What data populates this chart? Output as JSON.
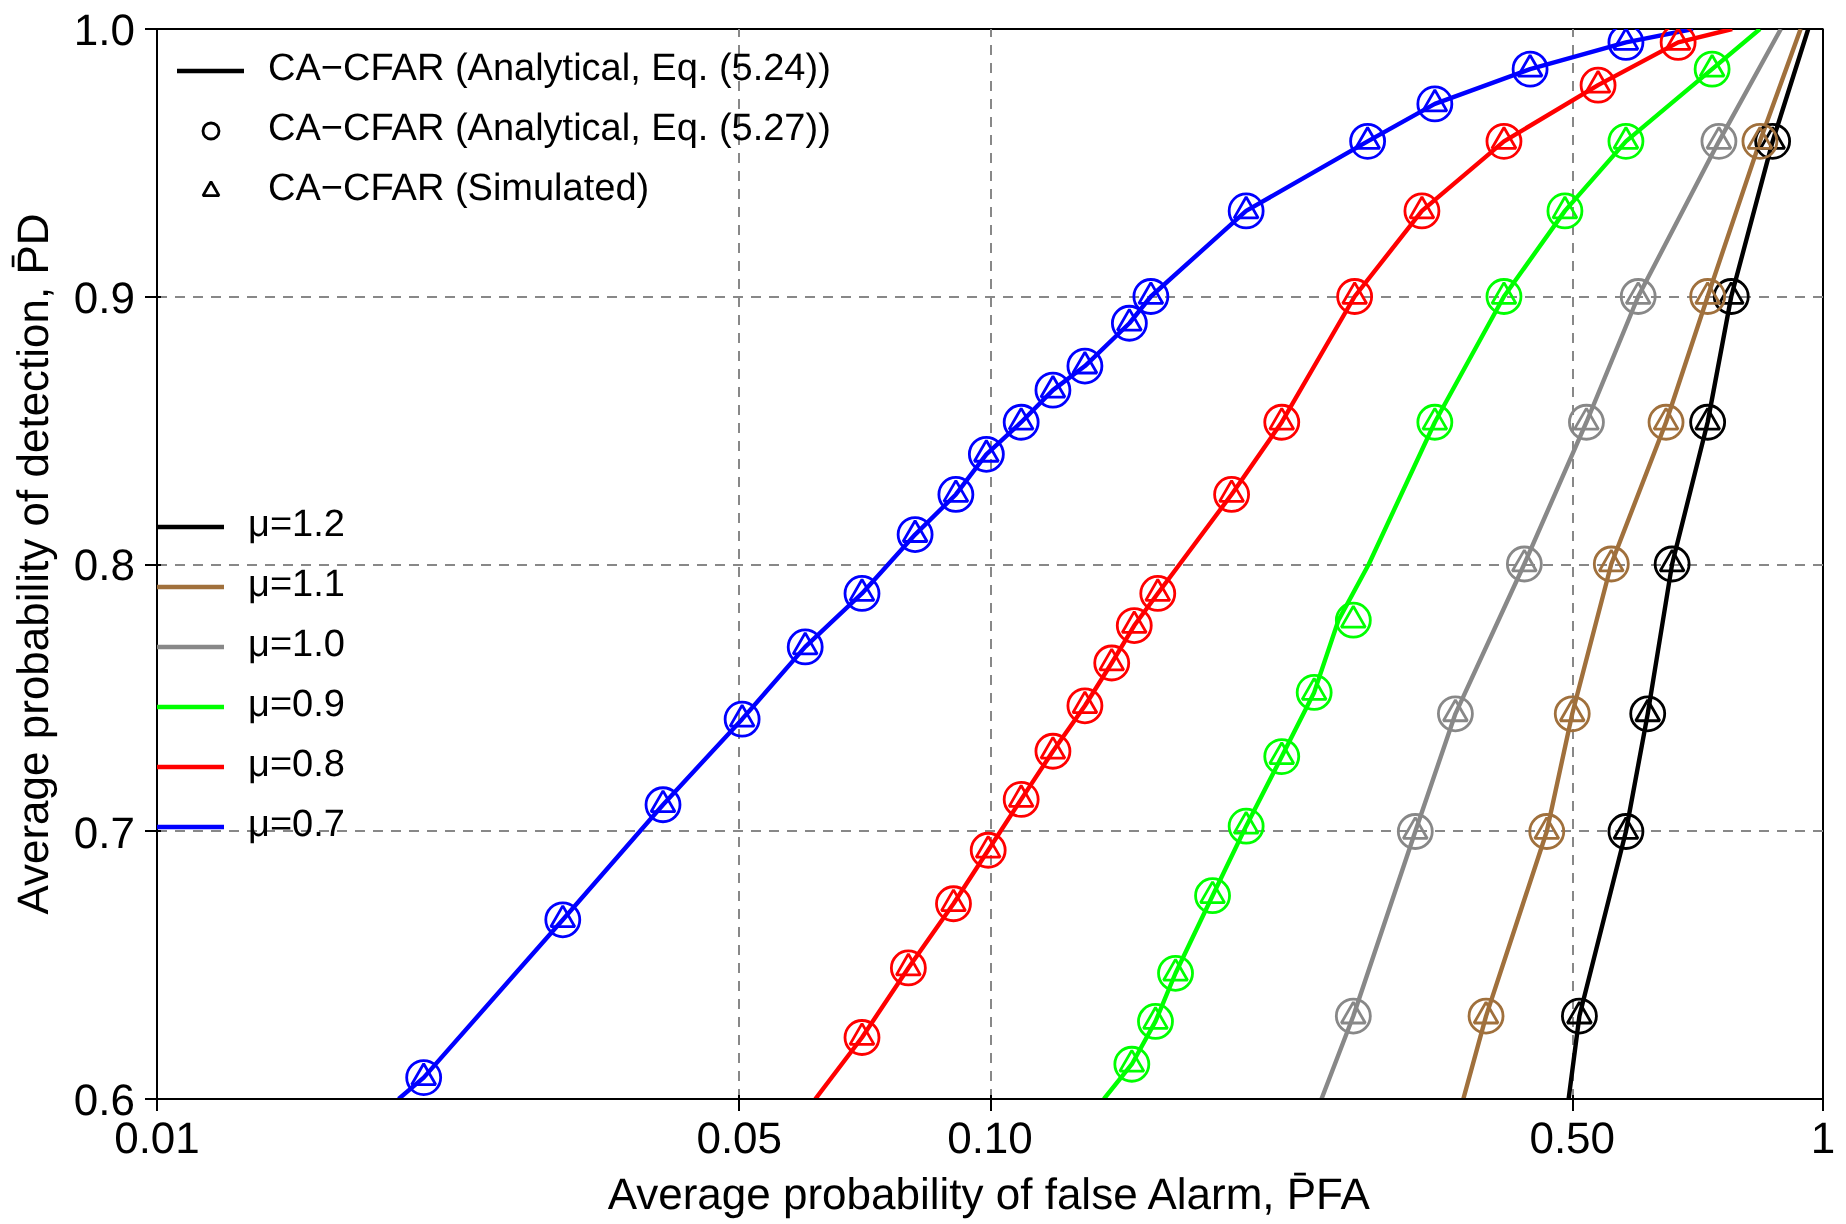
{
  "chart_data": {
    "type": "line",
    "xlabel": "Average probability of false Alarm, P̄FA",
    "ylabel": "Average probability of detection, P̄D",
    "annotations": [
      "CA−CFAR (Analytical, Eq. (5.24))"
    ],
    "log": "x",
    "xlim": [
      0.01,
      1
    ],
    "ylim": [
      0.6,
      1.0
    ],
    "xticks": [
      0.01,
      0.05,
      {
        "value": 0.1,
        "label": "0.10"
      },
      {
        "value": 0.5,
        "label": "0.50"
      },
      1
    ],
    "yticks": [
      0.6,
      0.7,
      0.8,
      0.9,
      {
        "value": 1,
        "label": "1.0"
      }
    ],
    "grid": true,
    "legend": "top left",
    "line_style": "solid",
    "series": [
      {
        "name": "μ=1.2",
        "color": "#000000",
        "x": [
          0.495,
          0.51,
          0.58,
          0.616,
          0.659,
          0.727,
          0.776,
          0.87,
          0.96
        ],
        "values": [
          0.6,
          0.631,
          0.7,
          0.744,
          0.8,
          0.853,
          0.9,
          0.958,
          1.0
        ]
      },
      {
        "name": "μ=1.1",
        "color": "#a0703c",
        "x": [
          0.37,
          0.394,
          0.466,
          0.5,
          0.557,
          0.648,
          0.727,
          0.84,
          0.94
        ],
        "values": [
          0.6,
          0.631,
          0.7,
          0.744,
          0.8,
          0.853,
          0.9,
          0.958,
          1.0
        ]
      },
      {
        "name": "μ=1.0",
        "color": "#888888",
        "x": [
          0.25,
          0.273,
          0.324,
          0.362,
          0.438,
          0.52,
          0.6,
          0.75,
          0.89
        ],
        "values": [
          0.6,
          0.631,
          0.7,
          0.744,
          0.8,
          0.853,
          0.9,
          0.958,
          1.0
        ]
      },
      {
        "name": "μ=0.9",
        "color": "#00ff00",
        "x": [
          0.137,
          0.148,
          0.158,
          0.167,
          0.185,
          0.203,
          0.224,
          0.245,
          0.262,
          0.285,
          0.342,
          0.414,
          0.49,
          0.58,
          0.736,
          0.84
        ],
        "values": [
          0.6,
          0.613,
          0.629,
          0.647,
          0.676,
          0.702,
          0.728,
          0.752,
          0.779,
          0.8,
          0.853,
          0.9,
          0.932,
          0.958,
          0.985,
          1.0
        ]
      },
      {
        "name": "μ=0.8",
        "color": "#ff0000",
        "x": [
          0.0617,
          0.0702,
          0.0798,
          0.0904,
          0.0995,
          0.109,
          0.119,
          0.13,
          0.14,
          0.149,
          0.159,
          0.169,
          0.195,
          0.224,
          0.274,
          0.33,
          0.414,
          0.537,
          0.67,
          0.778
        ],
        "values": [
          0.6,
          0.623,
          0.649,
          0.673,
          0.693,
          0.712,
          0.73,
          0.747,
          0.763,
          0.777,
          0.789,
          0.8,
          0.826,
          0.853,
          0.9,
          0.932,
          0.958,
          0.979,
          0.995,
          1.0
        ]
      },
      {
        "name": "μ=0.7",
        "color": "#0000ff",
        "x": [
          0.0195,
          0.0209,
          0.0307,
          0.0405,
          0.0504,
          0.06,
          0.0702,
          0.0813,
          0.091,
          0.099,
          0.109,
          0.119,
          0.13,
          0.147,
          0.156,
          0.203,
          0.284,
          0.342,
          0.445,
          0.58,
          0.698
        ],
        "values": [
          0.6,
          0.608,
          0.667,
          0.71,
          0.742,
          0.769,
          0.789,
          0.811,
          0.826,
          0.841,
          0.853,
          0.865,
          0.874,
          0.89,
          0.9,
          0.932,
          0.958,
          0.972,
          0.985,
          0.995,
          1.0
        ]
      },
      {
        "name": "CA−CFAR (Analytical, Eq. (5.27))",
        "type": "scatter",
        "marker": "circle",
        "color": "#000000",
        "x": [
          0.51,
          0.58,
          0.616,
          0.659,
          0.727,
          0.776,
          0.87
        ],
        "values": [
          0.631,
          0.7,
          0.744,
          0.8,
          0.853,
          0.9,
          0.958
        ]
      },
      {
        "name": "CA−CFAR (Simulated)",
        "type": "scatter",
        "marker": "triangle",
        "color": "#000000",
        "x": [
          0.51,
          0.58,
          0.616,
          0.659,
          0.727,
          0.776,
          0.87
        ],
        "values": [
          0.631,
          0.7,
          0.744,
          0.8,
          0.853,
          0.9,
          0.958
        ]
      },
      {
        "type": "scatter",
        "marker": "circle",
        "color": "#a0703c",
        "x": [
          0.394,
          0.466,
          0.5,
          0.557,
          0.648,
          0.727,
          0.84
        ],
        "values": [
          0.631,
          0.7,
          0.744,
          0.8,
          0.853,
          0.9,
          0.958
        ]
      },
      {
        "type": "scatter",
        "marker": "triangle",
        "color": "#a0703c",
        "x": [
          0.394,
          0.466,
          0.5,
          0.557,
          0.648,
          0.727,
          0.84
        ],
        "values": [
          0.631,
          0.7,
          0.744,
          0.8,
          0.853,
          0.9,
          0.958
        ]
      },
      {
        "type": "scatter",
        "marker": "circle",
        "color": "#888888",
        "x": [
          0.273,
          0.324,
          0.362,
          0.438,
          0.52,
          0.6,
          0.75
        ],
        "values": [
          0.631,
          0.7,
          0.744,
          0.8,
          0.853,
          0.9,
          0.958
        ]
      },
      {
        "type": "scatter",
        "marker": "triangle",
        "color": "#888888",
        "x": [
          0.273,
          0.324,
          0.362,
          0.438,
          0.52,
          0.6,
          0.75
        ],
        "values": [
          0.631,
          0.7,
          0.744,
          0.8,
          0.853,
          0.9,
          0.958
        ]
      },
      {
        "type": "scatter",
        "marker": "circle",
        "color": "#00ff00",
        "x": [
          0.148,
          0.158,
          0.167,
          0.185,
          0.203,
          0.224,
          0.245,
          0.273,
          0.342,
          0.414,
          0.49,
          0.58,
          0.736
        ],
        "values": [
          0.613,
          0.629,
          0.647,
          0.676,
          0.702,
          0.728,
          0.752,
          0.779,
          0.853,
          0.9,
          0.932,
          0.958,
          0.985
        ]
      },
      {
        "type": "scatter",
        "marker": "triangle",
        "color": "#00ff00",
        "x": [
          0.148,
          0.158,
          0.167,
          0.185,
          0.203,
          0.224,
          0.245,
          0.273,
          0.342,
          0.414,
          0.49,
          0.58,
          0.736
        ],
        "values": [
          0.613,
          0.629,
          0.647,
          0.676,
          0.702,
          0.728,
          0.752,
          0.779,
          0.853,
          0.9,
          0.932,
          0.958,
          0.985
        ]
      },
      {
        "type": "scatter",
        "marker": "circle",
        "color": "#ff0000",
        "x": [
          0.0702,
          0.0798,
          0.0904,
          0.0995,
          0.109,
          0.119,
          0.13,
          0.14,
          0.149,
          0.159,
          0.195,
          0.224,
          0.274,
          0.33,
          0.414,
          0.537,
          0.67
        ],
        "values": [
          0.623,
          0.649,
          0.673,
          0.693,
          0.712,
          0.73,
          0.747,
          0.763,
          0.777,
          0.789,
          0.826,
          0.853,
          0.9,
          0.932,
          0.958,
          0.979,
          0.995
        ]
      },
      {
        "type": "scatter",
        "marker": "triangle",
        "color": "#ff0000",
        "x": [
          0.0702,
          0.0798,
          0.0904,
          0.0995,
          0.109,
          0.119,
          0.13,
          0.14,
          0.149,
          0.159,
          0.195,
          0.224,
          0.274,
          0.33,
          0.414,
          0.537,
          0.67
        ],
        "values": [
          0.623,
          0.649,
          0.673,
          0.693,
          0.712,
          0.73,
          0.747,
          0.763,
          0.777,
          0.789,
          0.826,
          0.853,
          0.9,
          0.932,
          0.958,
          0.979,
          0.995
        ]
      },
      {
        "type": "scatter",
        "marker": "circle",
        "color": "#0000ff",
        "x": [
          0.0209,
          0.0307,
          0.0405,
          0.0504,
          0.06,
          0.0702,
          0.0813,
          0.091,
          0.099,
          0.109,
          0.119,
          0.13,
          0.147,
          0.156,
          0.203,
          0.284,
          0.342,
          0.445,
          0.58
        ],
        "values": [
          0.608,
          0.667,
          0.71,
          0.742,
          0.769,
          0.789,
          0.811,
          0.826,
          0.841,
          0.853,
          0.865,
          0.874,
          0.89,
          0.9,
          0.932,
          0.958,
          0.972,
          0.985,
          0.995
        ]
      },
      {
        "type": "scatter",
        "marker": "triangle",
        "color": "#0000ff",
        "x": [
          0.0209,
          0.0307,
          0.0405,
          0.0504,
          0.06,
          0.0702,
          0.0813,
          0.091,
          0.099,
          0.109,
          0.119,
          0.13,
          0.147,
          0.156,
          0.203,
          0.284,
          0.342,
          0.445,
          0.58
        ],
        "values": [
          0.608,
          0.667,
          0.71,
          0.742,
          0.769,
          0.789,
          0.811,
          0.826,
          0.841,
          0.853,
          0.865,
          0.874,
          0.89,
          0.9,
          0.932,
          0.958,
          0.972,
          0.985,
          0.995
        ]
      }
    ]
  }
}
